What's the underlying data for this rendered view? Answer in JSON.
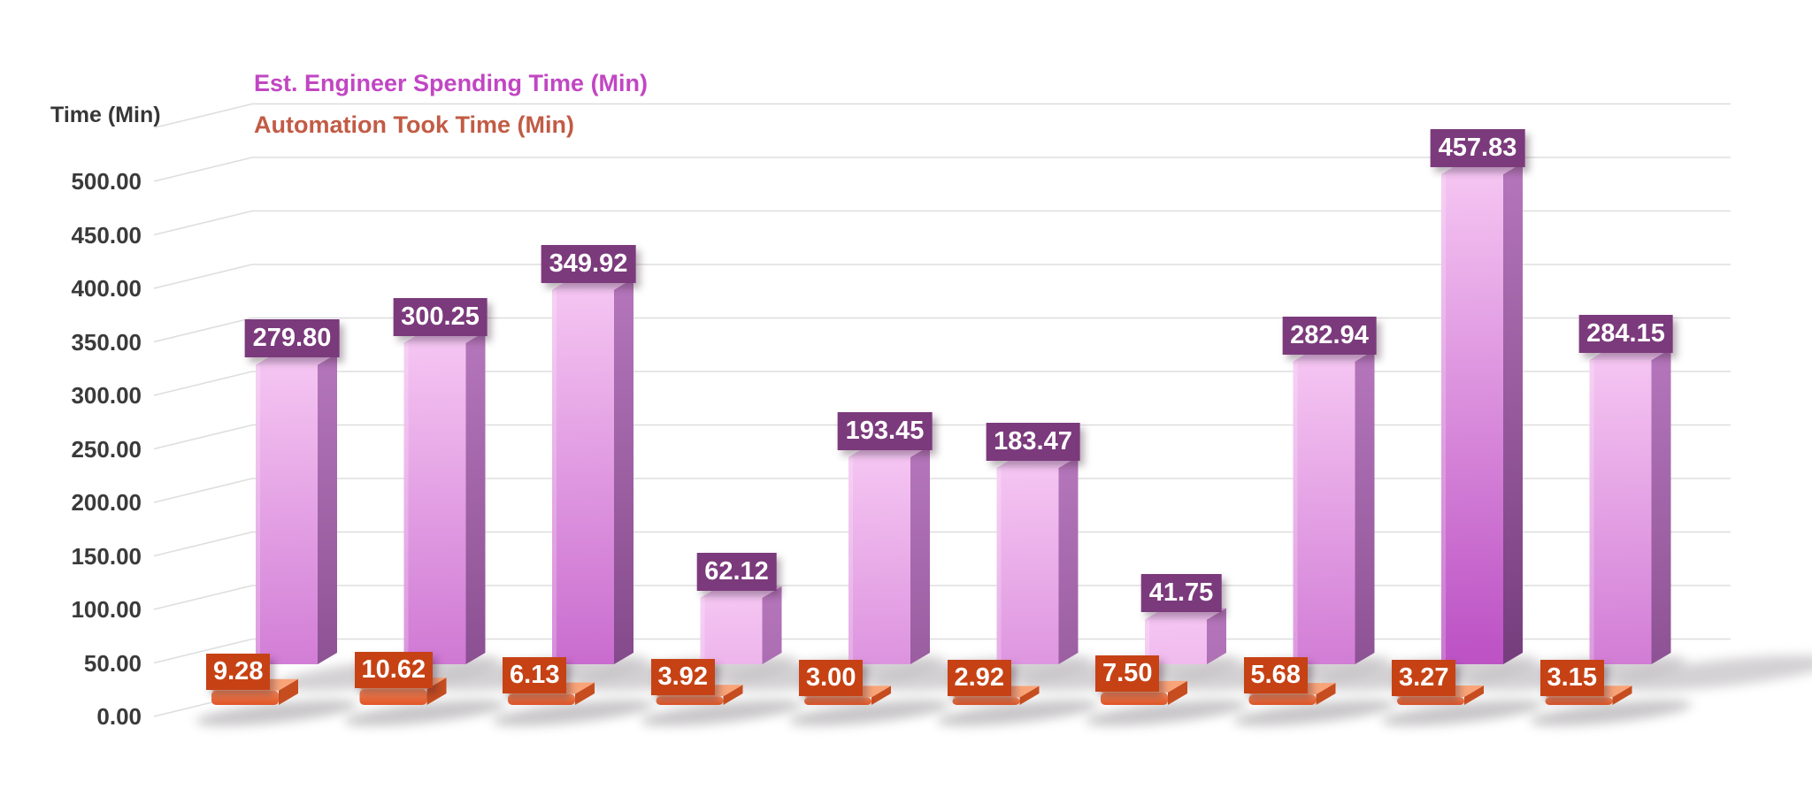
{
  "chart_data": {
    "type": "bar",
    "variant": "3d-clustered-column",
    "title": "",
    "axis_title_y": "Time (Min)",
    "xlabel": "",
    "ylabel": "Time (Min)",
    "ylim": [
      0,
      500
    ],
    "y_tick_step": 50,
    "y_tick_labels": [
      "0.00",
      "50.00",
      "100.00",
      "150.00",
      "200.00",
      "250.00",
      "300.00",
      "350.00",
      "400.00",
      "450.00",
      "500.00"
    ],
    "grid": true,
    "legend_position": "top-left",
    "categories": [
      "",
      "",
      "",
      "",
      "",
      "",
      "",
      "",
      "",
      ""
    ],
    "legend": [
      {
        "label": "Est. Engineer Spending Time (Min)",
        "color": "#c146c3"
      },
      {
        "label": "Automation Took Time (Min)",
        "color": "#c25b45"
      }
    ],
    "series": [
      {
        "name": "Est. Engineer Spending Time (Min)",
        "values": [
          279.8,
          300.25,
          349.92,
          62.12,
          193.45,
          183.47,
          41.75,
          282.94,
          457.83,
          284.15
        ],
        "labels": [
          "279.80",
          "300.25",
          "349.92",
          "62.12",
          "193.45",
          "183.47",
          "41.75",
          "282.94",
          "457.83",
          "284.15"
        ],
        "label_bg": "#7b3a7c",
        "label_color": "#ffffff",
        "color_front_top": "#f5c5f2",
        "color_front_bottom": "#bd53c5",
        "color_side_top": "#b475ba",
        "color_side_bottom": "#773e7e",
        "color_top_face": "#efc3f0"
      },
      {
        "name": "Automation Took Time (Min)",
        "values": [
          9.28,
          10.62,
          6.13,
          3.92,
          3.0,
          2.92,
          7.5,
          5.68,
          3.27,
          3.15
        ],
        "labels": [
          "9.28",
          "10.62",
          "6.13",
          "3.92",
          "3.00",
          "2.92",
          "7.50",
          "5.68",
          "3.27",
          "3.15"
        ],
        "label_bg": "#c64214",
        "label_color": "#ffffff",
        "color_front_top": "#f58a59",
        "color_front_bottom": "#e05426",
        "color_side": "#c64d20",
        "color_top_face": "#f9a478"
      }
    ],
    "colors": {
      "background": "#ffffff",
      "gridline": "#dedede",
      "tick_text": "#3a3a3a",
      "axis_title_text": "#373737"
    }
  }
}
